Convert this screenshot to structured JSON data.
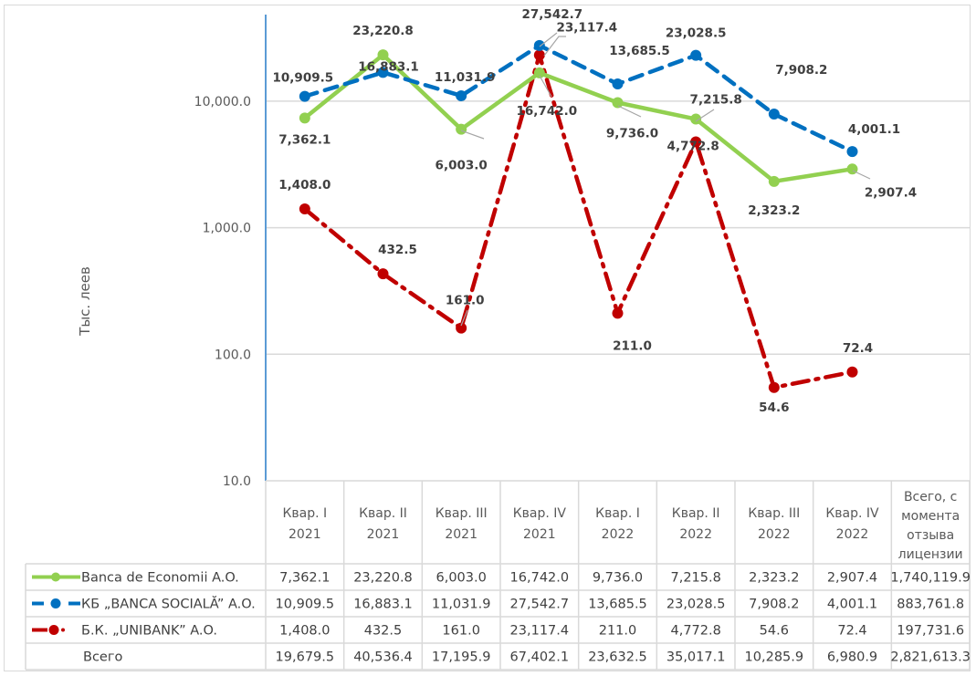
{
  "chart_data": {
    "type": "line",
    "title": "",
    "xlabel": "",
    "ylabel": "Тыс. леев",
    "yscale": "log",
    "ylim": [
      10,
      40000
    ],
    "yticks": [
      10,
      100,
      1000,
      10000
    ],
    "ytick_labels": [
      "10.0",
      "100.0",
      "1,000.0",
      "10,000.0"
    ],
    "grid": true,
    "legend": "data-table",
    "categories": [
      {
        "line1": "Квар. I",
        "line2": "2021"
      },
      {
        "line1": "Квар. II",
        "line2": "2021"
      },
      {
        "line1": "Квар. III",
        "line2": "2021"
      },
      {
        "line1": "Квар. IV",
        "line2": "2021"
      },
      {
        "line1": "Квар. I",
        "line2": "2022"
      },
      {
        "line1": "Квар. II",
        "line2": "2022"
      },
      {
        "line1": "Квар. III",
        "line2": "2022"
      },
      {
        "line1": "Квар. IV",
        "line2": "2022"
      }
    ],
    "total_column_header": [
      "Всего, с",
      "момента",
      "отзыва",
      "лицензии"
    ],
    "series": [
      {
        "name": "Banca de Economii A.O.",
        "color": "#92d050",
        "style": "solid",
        "values": [
          7362.1,
          23220.8,
          6003.0,
          16742.0,
          9736.0,
          7215.8,
          2323.2,
          2907.4
        ],
        "labels": [
          "7,362.1",
          "23,220.8",
          "6,003.0",
          "16,742.0",
          "9,736.0",
          "7,215.8",
          "2,323.2",
          "2,907.4"
        ],
        "total": "1,740,119.9"
      },
      {
        "name": "КБ „BANCA SOCIALĂ” A.O.",
        "color": "#0070c0",
        "style": "dash",
        "values": [
          10909.5,
          16883.1,
          11031.9,
          27542.7,
          13685.5,
          23028.5,
          7908.2,
          4001.1
        ],
        "labels": [
          "10,909.5",
          "16,883.1",
          "11,031.9",
          "27,542.7",
          "13,685.5",
          "23,028.5",
          "7,908.2",
          "4,001.1"
        ],
        "total": "883,761.8"
      },
      {
        "name": "Б.К. „UNIBANK” A.O.",
        "color": "#c00000",
        "style": "dashdot",
        "values": [
          1408.0,
          432.5,
          161.0,
          23117.4,
          211.0,
          4772.8,
          54.6,
          72.4
        ],
        "labels": [
          "1,408.0",
          "432.5",
          "161.0",
          "23,117.4",
          "211.0",
          "4,772.8",
          "54.6",
          "72.4"
        ],
        "total": "197,731.6"
      }
    ],
    "totals_row": {
      "name": "Всего",
      "labels": [
        "19,679.5",
        "40,536.4",
        "17,195.9",
        "67,402.1",
        "23,632.5",
        "35,017.1",
        "10,285.9",
        "6,980.9"
      ],
      "total": "2,821,613.3"
    }
  }
}
